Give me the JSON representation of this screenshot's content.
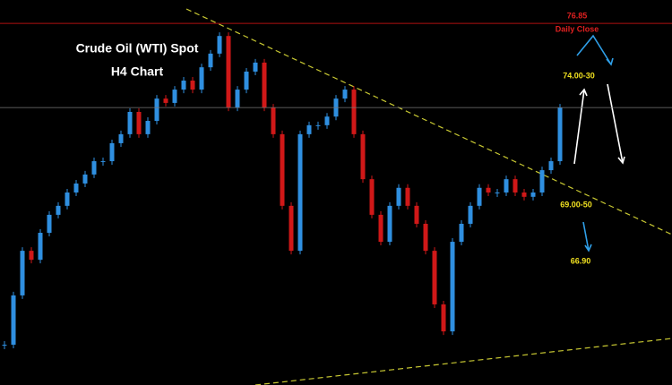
{
  "chart_data": {
    "type": "candlestick",
    "title": "Crude Oil (WTI) Spot",
    "subtitle": "H4 Chart",
    "values": [
      67.92,
      69.29,
      70.53,
      70.28,
      71.03,
      71.53,
      71.78,
      72.15,
      72.4,
      72.65,
      73.02,
      73.02,
      73.52,
      73.77,
      74.39,
      73.77,
      74.14,
      74.76,
      74.64,
      75.01,
      75.26,
      75.01,
      75.63,
      76.01,
      76.5,
      74.51,
      75.01,
      75.51,
      75.76,
      74.51,
      73.77,
      71.78,
      70.53,
      73.77,
      74.02,
      74.02,
      74.26,
      74.76,
      75.01,
      73.77,
      72.52,
      71.53,
      70.78,
      71.78,
      72.28,
      71.78,
      71.28,
      70.53,
      69.04,
      68.29,
      70.78,
      71.28,
      71.78,
      72.28,
      72.15,
      72.15,
      72.52,
      72.15,
      72.03,
      72.15,
      72.77,
      73.02,
      74.51
    ],
    "ylim": [
      66.8,
      77.5
    ],
    "up_color": "#2f8fe0",
    "down_color": "#d01818",
    "daily_close": 76.85,
    "daily_close_label": "Daily Close",
    "annotations": [
      "74.00-30",
      "69.00-50",
      "66.90"
    ]
  }
}
